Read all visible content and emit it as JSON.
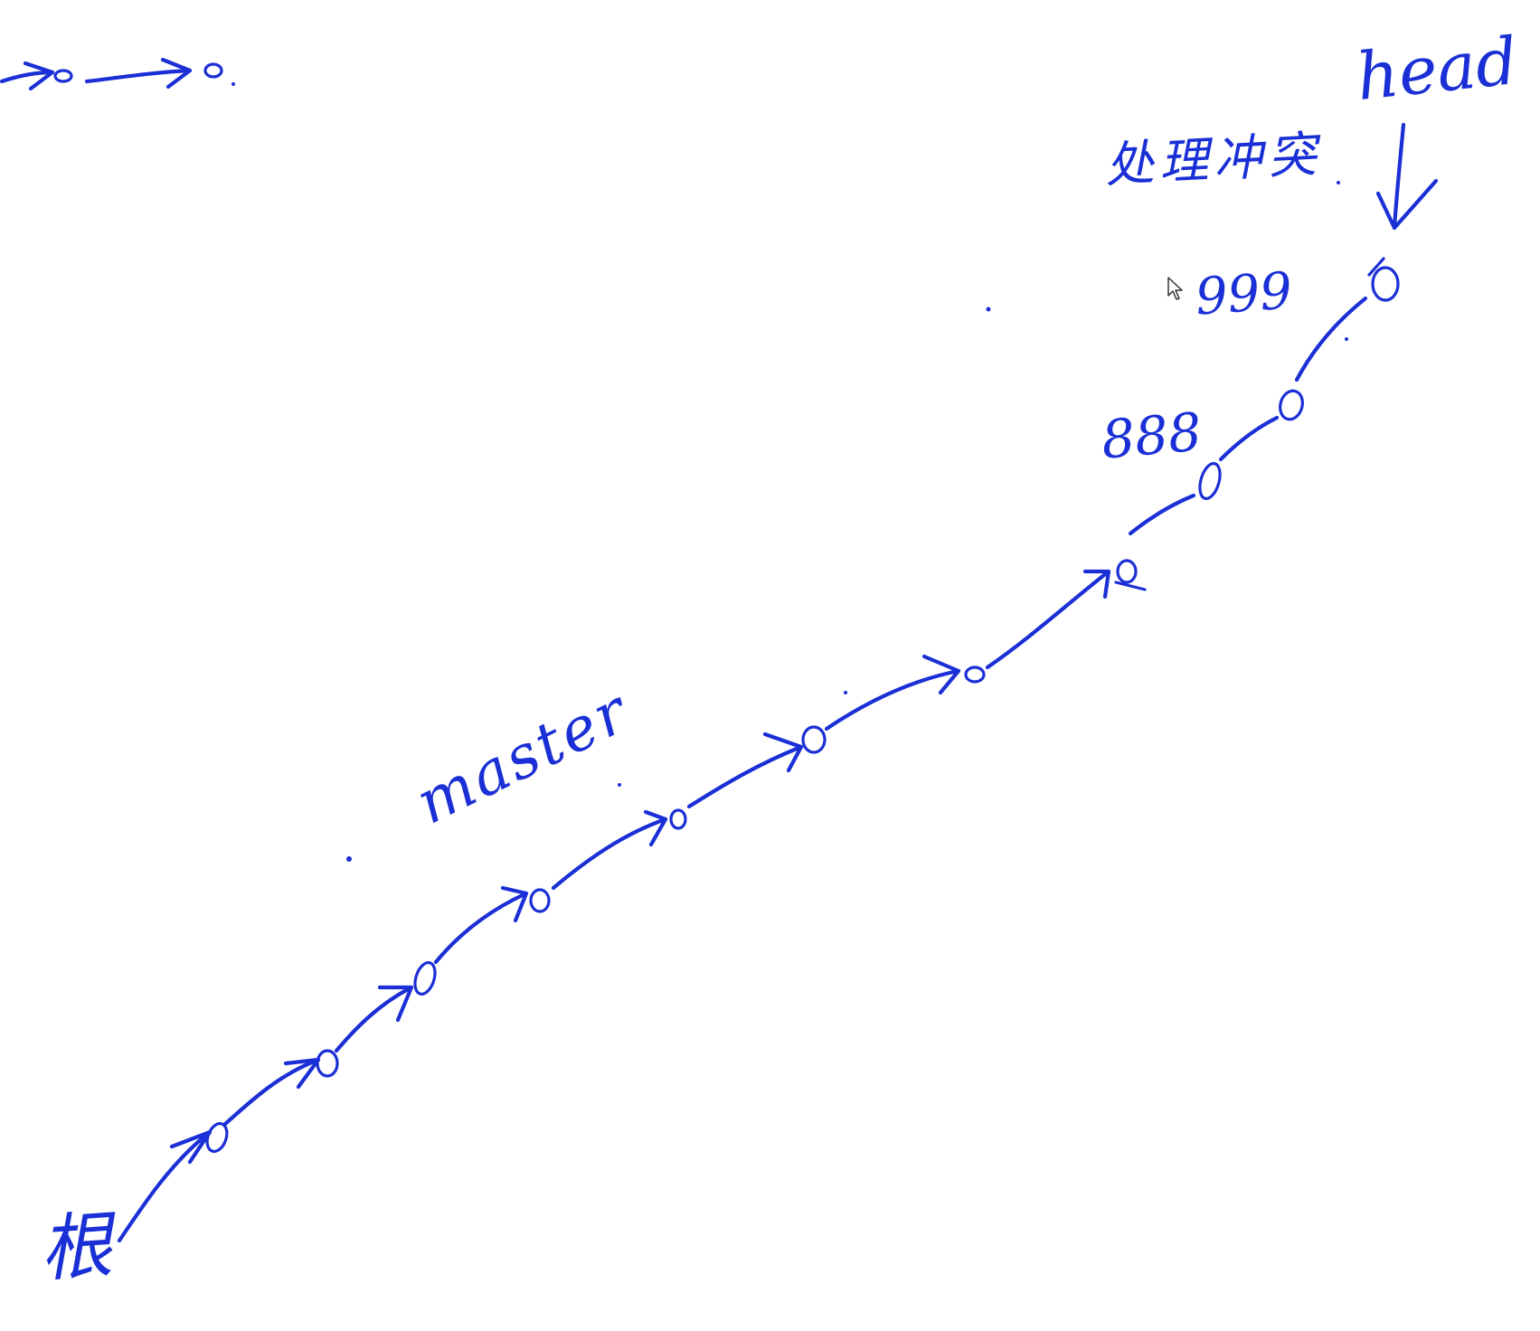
{
  "colors": {
    "ink": "#1a2fd6",
    "background": "#ffffff"
  },
  "labels": {
    "head": "head",
    "conflict": "处理冲突",
    "v999": "999",
    "v888": "888",
    "master": "master",
    "root": "根"
  },
  "icons": {
    "cursor": "mouse-pointer-icon"
  }
}
